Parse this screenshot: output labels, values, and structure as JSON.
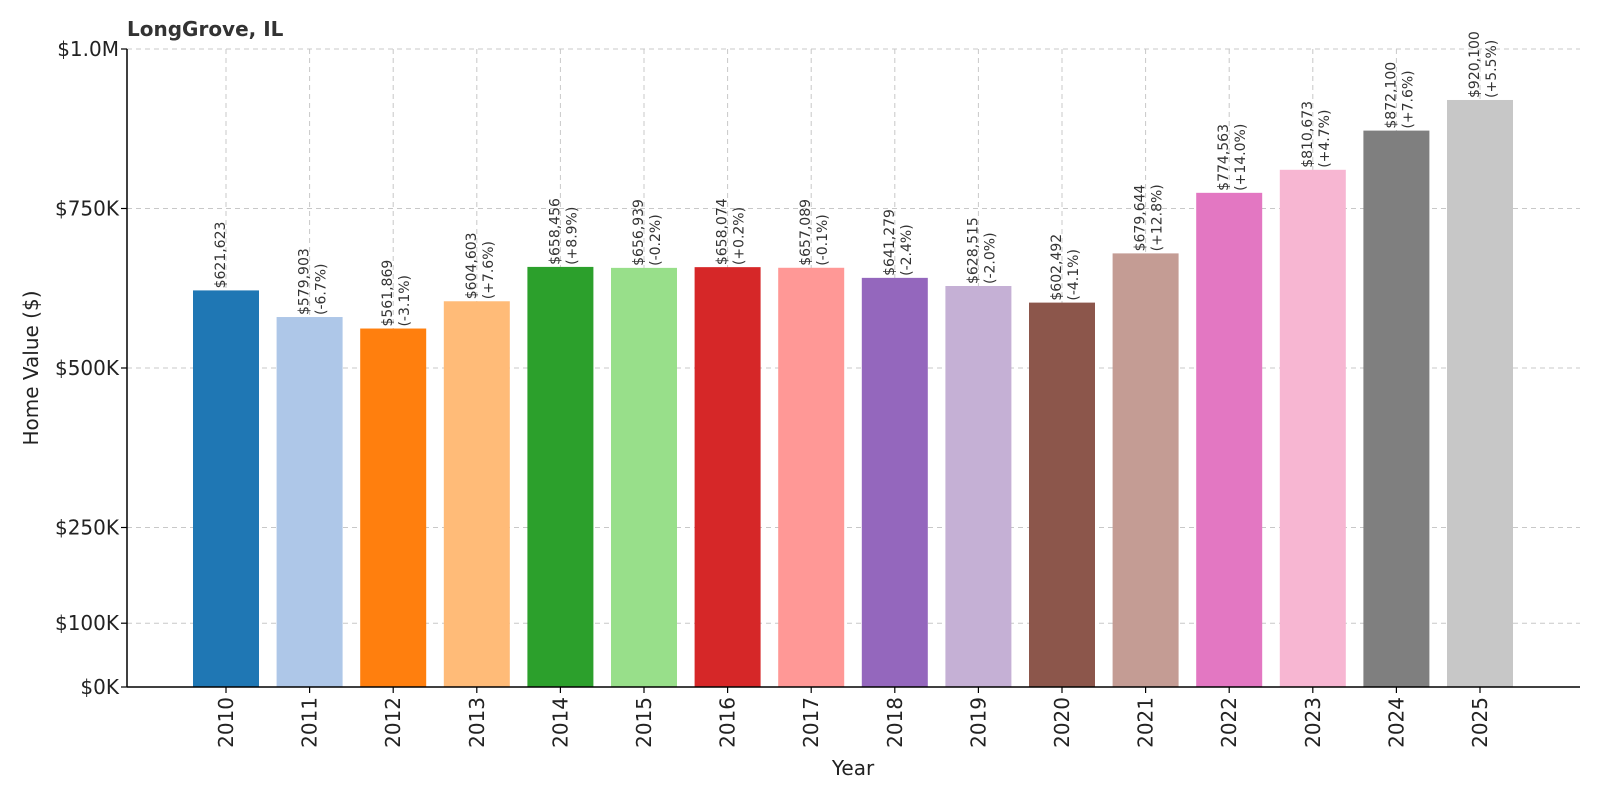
{
  "chart_data": {
    "type": "bar",
    "title": "LongGrove, IL",
    "xlabel": "Year",
    "ylabel": "Home Value ($)",
    "categories": [
      "2010",
      "2011",
      "2012",
      "2013",
      "2014",
      "2015",
      "2016",
      "2017",
      "2018",
      "2019",
      "2020",
      "2021",
      "2022",
      "2023",
      "2024",
      "2025"
    ],
    "values": [
      621623,
      579903,
      561869,
      604603,
      658456,
      656939,
      658074,
      657089,
      641279,
      628515,
      602492,
      679644,
      774563,
      810673,
      872100,
      920100
    ],
    "value_labels": [
      "$621,623",
      "$579,903",
      "$561,869",
      "$604,603",
      "$658,456",
      "$656,939",
      "$658,074",
      "$657,089",
      "$641,279",
      "$628,515",
      "$602,492",
      "$679,644",
      "$774,563",
      "$810,673",
      "$872,100",
      "$920,100"
    ],
    "change_labels": [
      "",
      "(-6.7%)",
      "(-3.1%)",
      "(+7.6%)",
      "(+8.9%)",
      "(-0.2%)",
      "(+0.2%)",
      "(-0.1%)",
      "(-2.4%)",
      "(-2.0%)",
      "(-4.1%)",
      "(+12.8%)",
      "(+14.0%)",
      "(+4.7%)",
      "(+7.6%)",
      "(+5.5%)"
    ],
    "colors": [
      "#1f77b4",
      "#aec7e8",
      "#ff7f0e",
      "#ffbb78",
      "#2ca02c",
      "#98df8a",
      "#d62728",
      "#ff9896",
      "#9467bd",
      "#c5b0d5",
      "#8c564b",
      "#c49c94",
      "#e377c2",
      "#f7b6d2",
      "#7f7f7f",
      "#c7c7c7"
    ],
    "ylim": [
      0,
      1000000
    ],
    "yticks": [
      0,
      100000,
      250000,
      500000,
      750000,
      1000000
    ],
    "ytick_labels": [
      "$0K",
      "$100K",
      "$250K",
      "$500K",
      "$750K",
      "$1.0M"
    ],
    "grid": true,
    "legend": "none"
  }
}
